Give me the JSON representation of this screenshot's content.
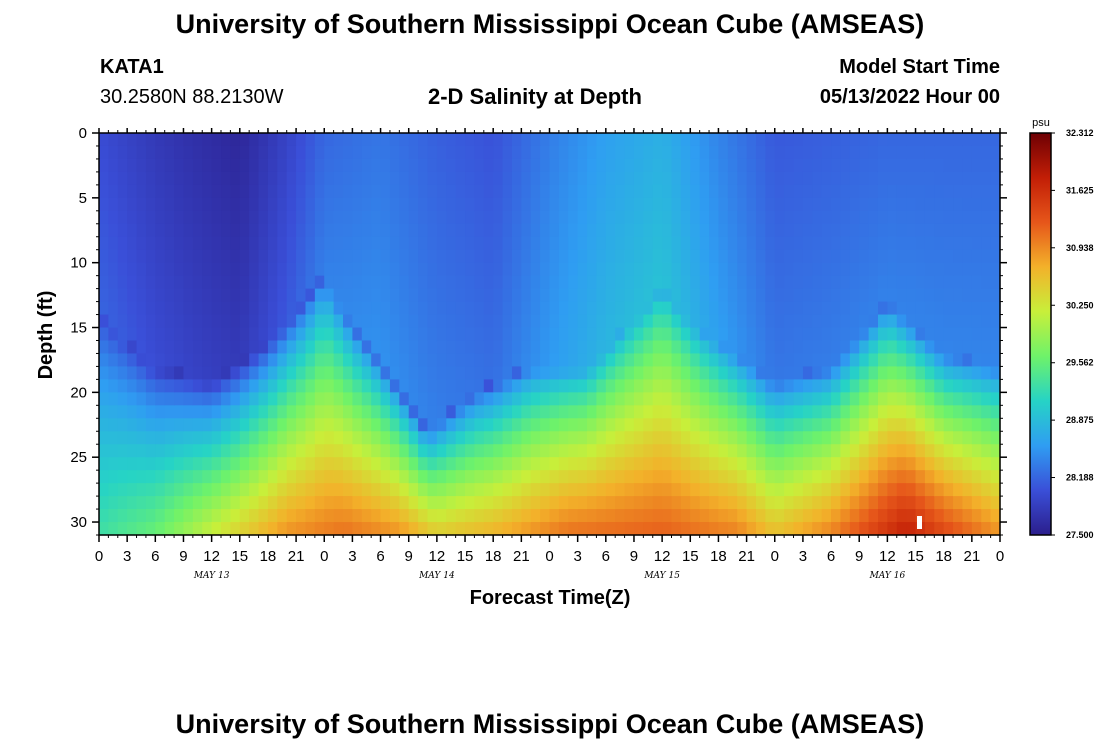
{
  "page": {
    "title": "University of Southern Mississippi Ocean Cube (AMSEAS)",
    "station_id": "KATA1",
    "coordinates": "30.2580N  88.2130W",
    "model_start_label": "Model Start Time",
    "model_start_value": "05/13/2022 Hour 00",
    "footer_title": "University of Southern Mississippi Ocean Cube (AMSEAS)"
  },
  "chart_data": {
    "type": "heatmap",
    "title": "2-D Salinity at Depth",
    "xlabel": "Forecast Time(Z)",
    "ylabel": "Depth (ft)",
    "x_hours_range": [
      0,
      96
    ],
    "y_depth_range_ft": [
      0,
      31
    ],
    "x_tick_hours": [
      0,
      3,
      6,
      9,
      12,
      15,
      18,
      21,
      24,
      27,
      30,
      33,
      36,
      39,
      42,
      45,
      48,
      51,
      54,
      57,
      60,
      63,
      66,
      69,
      72,
      75,
      78,
      81,
      84,
      87,
      90,
      93,
      96
    ],
    "x_tick_labels": [
      "0",
      "3",
      "6",
      "9",
      "12",
      "15",
      "18",
      "21",
      "0",
      "3",
      "6",
      "9",
      "12",
      "15",
      "18",
      "21",
      "0",
      "3",
      "6",
      "9",
      "12",
      "15",
      "18",
      "21",
      "0",
      "3",
      "6",
      "9",
      "12",
      "15",
      "18",
      "21",
      "0"
    ],
    "day_labels": [
      {
        "label": "MAY 13",
        "hour": 12
      },
      {
        "label": "MAY 14",
        "hour": 36
      },
      {
        "label": "MAY 15",
        "hour": 60
      },
      {
        "label": "MAY 16",
        "hour": 84
      }
    ],
    "y_ticks": [
      0,
      5,
      10,
      15,
      20,
      25,
      30
    ],
    "y_tick_labels": [
      "0",
      "5",
      "10",
      "15",
      "20",
      "25",
      "30"
    ],
    "colorbar": {
      "unit": "psu",
      "min": 27.5,
      "max": 32.312,
      "tick_labels": [
        "32.312",
        "31.625",
        "30.938",
        "30.250",
        "29.562",
        "28.875",
        "28.188",
        "27.500"
      ],
      "colors": [
        "#2b1e8c",
        "#3a4fd8",
        "#2f9df2",
        "#26d3c6",
        "#6ef26a",
        "#c8ef3a",
        "#f3b12a",
        "#e6561a",
        "#c21e06",
        "#6e0004"
      ]
    },
    "halocline_depth_ft_by_hour": [
      {
        "hour": 0,
        "depth": 18
      },
      {
        "hour": 6,
        "depth": 22
      },
      {
        "hour": 12,
        "depth": 23
      },
      {
        "hour": 18,
        "depth": 20
      },
      {
        "hour": 22,
        "depth": 17
      },
      {
        "hour": 24,
        "depth": 15
      },
      {
        "hour": 27,
        "depth": 19
      },
      {
        "hour": 31,
        "depth": 23
      },
      {
        "hour": 35,
        "depth": 27
      },
      {
        "hour": 40,
        "depth": 24
      },
      {
        "hour": 46,
        "depth": 22
      },
      {
        "hour": 52,
        "depth": 22
      },
      {
        "hour": 56,
        "depth": 19
      },
      {
        "hour": 60,
        "depth": 16
      },
      {
        "hour": 64,
        "depth": 19
      },
      {
        "hour": 70,
        "depth": 22
      },
      {
        "hour": 72,
        "depth": 23
      },
      {
        "hour": 78,
        "depth": 22
      },
      {
        "hour": 84,
        "depth": 17
      },
      {
        "hour": 90,
        "depth": 21
      },
      {
        "hour": 96,
        "depth": 22
      }
    ],
    "surface_salinity_by_hour": [
      {
        "hour": 0,
        "value": 28.0
      },
      {
        "hour": 6,
        "value": 27.8
      },
      {
        "hour": 10,
        "value": 27.7
      },
      {
        "hour": 15,
        "value": 27.6
      },
      {
        "hour": 20,
        "value": 27.9
      },
      {
        "hour": 24,
        "value": 28.2
      },
      {
        "hour": 30,
        "value": 28.3
      },
      {
        "hour": 36,
        "value": 28.15
      },
      {
        "hour": 42,
        "value": 28.05
      },
      {
        "hour": 48,
        "value": 28.35
      },
      {
        "hour": 54,
        "value": 28.6
      },
      {
        "hour": 60,
        "value": 28.75
      },
      {
        "hour": 66,
        "value": 28.4
      },
      {
        "hour": 72,
        "value": 28.1
      },
      {
        "hour": 78,
        "value": 28.15
      },
      {
        "hour": 84,
        "value": 28.2
      },
      {
        "hour": 90,
        "value": 28.2
      },
      {
        "hour": 96,
        "value": 28.2
      }
    ],
    "bottom_salinity_by_hour": [
      {
        "hour": 0,
        "value": 29.3
      },
      {
        "hour": 6,
        "value": 29.6
      },
      {
        "hour": 12,
        "value": 30.2
      },
      {
        "hour": 20,
        "value": 30.9
      },
      {
        "hour": 26,
        "value": 31.1
      },
      {
        "hour": 32,
        "value": 30.9
      },
      {
        "hour": 36,
        "value": 30.5
      },
      {
        "hour": 42,
        "value": 30.7
      },
      {
        "hour": 50,
        "value": 31.1
      },
      {
        "hour": 60,
        "value": 31.2
      },
      {
        "hour": 68,
        "value": 31.0
      },
      {
        "hour": 72,
        "value": 30.6
      },
      {
        "hour": 78,
        "value": 31.0
      },
      {
        "hour": 86,
        "value": 31.8
      },
      {
        "hour": 90,
        "value": 31.4
      },
      {
        "hour": 96,
        "value": 30.9
      }
    ]
  }
}
